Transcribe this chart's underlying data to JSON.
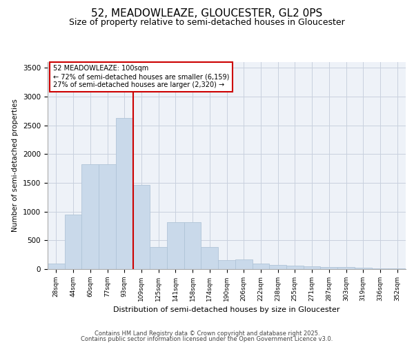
{
  "title1": "52, MEADOWLEAZE, GLOUCESTER, GL2 0PS",
  "title2": "Size of property relative to semi-detached houses in Gloucester",
  "xlabel": "Distribution of semi-detached houses by size in Gloucester",
  "ylabel": "Number of semi-detached properties",
  "footer1": "Contains HM Land Registry data © Crown copyright and database right 2025.",
  "footer2": "Contains public sector information licensed under the Open Government Licence v3.0.",
  "annotation_title": "52 MEADOWLEAZE: 100sqm",
  "annotation_line1": "← 72% of semi-detached houses are smaller (6,159)",
  "annotation_line2": "27% of semi-detached houses are larger (2,320) →",
  "bar_color": "#c9d9ea",
  "bar_edge_color": "#b0c4d8",
  "ref_line_color": "#cc0000",
  "categories": [
    "28sqm",
    "44sqm",
    "60sqm",
    "77sqm",
    "93sqm",
    "109sqm",
    "125sqm",
    "141sqm",
    "158sqm",
    "174sqm",
    "190sqm",
    "206sqm",
    "222sqm",
    "238sqm",
    "255sqm",
    "271sqm",
    "287sqm",
    "303sqm",
    "319sqm",
    "336sqm",
    "352sqm"
  ],
  "values": [
    95,
    950,
    1820,
    1820,
    2630,
    1470,
    390,
    820,
    820,
    380,
    160,
    165,
    100,
    75,
    55,
    45,
    40,
    35,
    30,
    15,
    10
  ],
  "ylim": [
    0,
    3600
  ],
  "yticks": [
    0,
    500,
    1000,
    1500,
    2000,
    2500,
    3000,
    3500
  ],
  "background_color": "#eef2f8",
  "grid_color": "#c8d0de",
  "title_fontsize": 11,
  "subtitle_fontsize": 9
}
